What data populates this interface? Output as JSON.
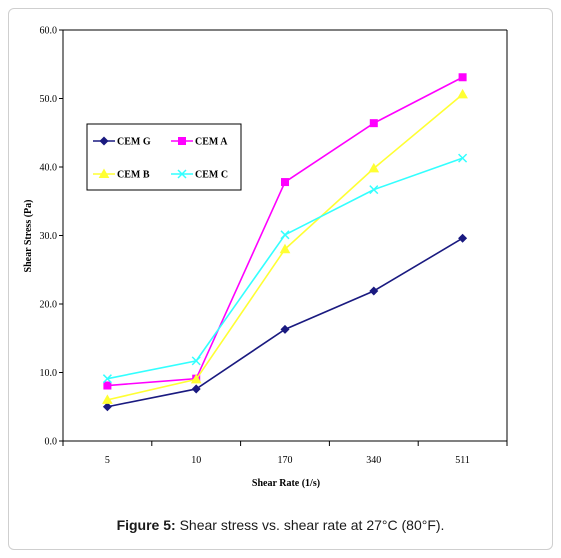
{
  "caption": {
    "label": "Figure 5:",
    "text": "Shear stress vs. shear rate at 27°C (80°F)."
  },
  "chart_data": {
    "type": "line",
    "categories": [
      "5",
      "10",
      "170",
      "340",
      "511"
    ],
    "xlabel": "Shear Rate (1/s)",
    "ylabel": "Shear Stress (Pa)",
    "ylim": [
      0,
      60
    ],
    "yticks": [
      "0.0",
      "10.0",
      "20.0",
      "30.0",
      "40.0",
      "50.0",
      "60.0"
    ],
    "grid": false,
    "legend_position": "upper-left",
    "series": [
      {
        "name": "CEM G",
        "color": "#1a1a80",
        "marker": "diamond",
        "values": [
          5.0,
          7.6,
          16.3,
          21.9,
          29.6
        ]
      },
      {
        "name": "CEM A",
        "color": "#ff00ff",
        "marker": "square",
        "values": [
          8.1,
          9.1,
          37.8,
          46.4,
          53.1
        ]
      },
      {
        "name": "CEM B",
        "color": "#ffff33",
        "marker": "triangle",
        "values": [
          6.0,
          9.0,
          28.0,
          39.8,
          50.6
        ]
      },
      {
        "name": "CEM C",
        "color": "#33ffff",
        "marker": "x",
        "values": [
          9.1,
          11.7,
          30.1,
          36.7,
          41.3
        ]
      }
    ]
  }
}
